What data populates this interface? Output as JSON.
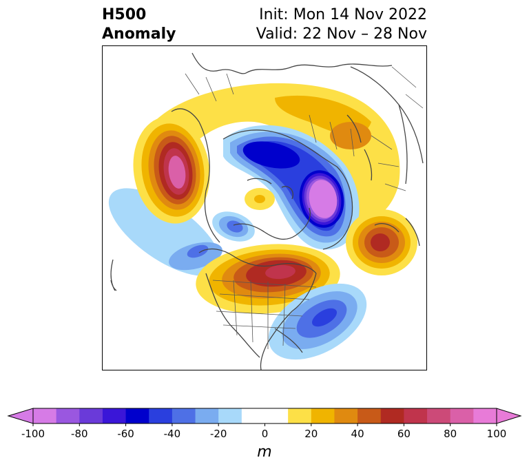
{
  "header": {
    "title_line1": "H500",
    "title_line2": "Anomaly",
    "init": "Init: Mon 14 Nov 2022",
    "valid": "Valid: 22 Nov – 28 Nov"
  },
  "colorbar": {
    "ticks": [
      "-100",
      "-80",
      "-60",
      "-40",
      "-20",
      "0",
      "20",
      "40",
      "60",
      "80",
      "100"
    ],
    "colors": [
      "#d67be6",
      "#9a57e0",
      "#6a3ad9",
      "#3a16d8",
      "#0000cc",
      "#2a3fde",
      "#4e70e6",
      "#7aacf0",
      "#a8d9fa",
      "#ffffff",
      "#ffffff",
      "#fde047",
      "#f0b400",
      "#e08a10",
      "#c85a18",
      "#b02a22",
      "#c0344c",
      "#cc4a78",
      "#da60a8",
      "#e87bd8"
    ],
    "units": "m"
  },
  "map": {
    "colors": {
      "coast": "#444444",
      "land_border": "#555555"
    }
  }
}
